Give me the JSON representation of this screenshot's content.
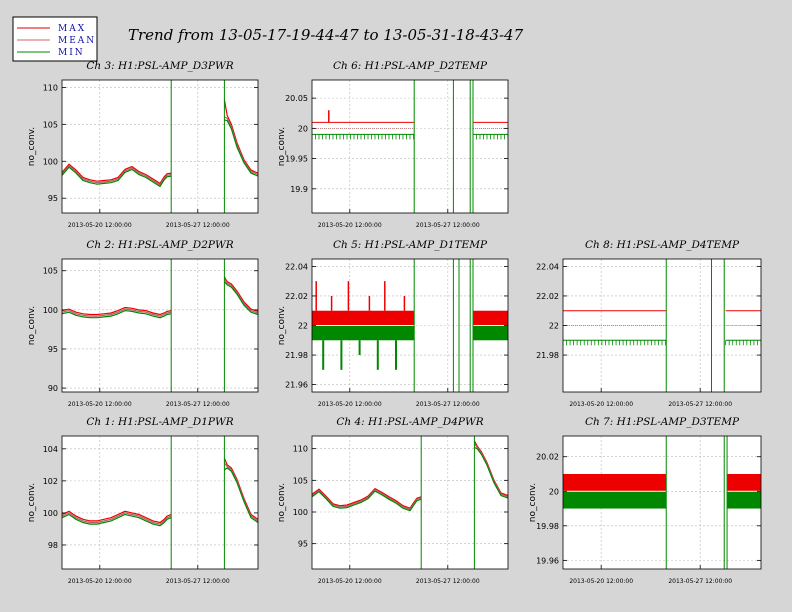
{
  "page_title": "Trend from 13-05-17-19-44-47 to 13-05-31-18-43-47",
  "legend": {
    "items": [
      {
        "label": "MAX",
        "color": "#dd0000"
      },
      {
        "label": "MEAN",
        "color": "#cc6666"
      },
      {
        "label": "MIN",
        "color": "#008800"
      }
    ]
  },
  "colors": {
    "max": "#ee0000",
    "mean": "#aa6666",
    "min": "#008800",
    "grid": "#bbbbbb",
    "background": "#d6d6d6",
    "plot": "#ffffff"
  },
  "chart_data": [
    {
      "type": "line",
      "title": "Ch 3: H1:PSL-AMP_D3PWR",
      "ylabel": "no_conv.",
      "xlabel": "",
      "xlim": [
        0,
        14
      ],
      "ylim": [
        93,
        111
      ],
      "yticks": [
        95,
        100,
        105,
        110
      ],
      "ytick_labels": [
        "95",
        "100",
        "105",
        "110"
      ],
      "xticks": [
        2.7,
        9.7
      ],
      "xtick_labels": [
        "2013-05-20 12:00:00",
        "2013-05-27 12:00:00"
      ],
      "grid": true,
      "x": [
        0,
        0.5,
        1,
        1.5,
        2,
        2.5,
        3,
        3.5,
        4,
        4.5,
        5,
        5.5,
        6,
        6.5,
        7,
        7.3,
        7.5,
        7.8
      ],
      "series": [
        {
          "name": "MAX",
          "values": [
            98.5,
            99.6,
            98.8,
            97.8,
            97.5,
            97.3,
            97.4,
            97.5,
            97.8,
            98.9,
            99.3,
            98.6,
            98.2,
            97.6,
            97.0,
            97.9,
            98.3,
            98.4
          ]
        },
        {
          "name": "MEAN",
          "values": [
            98.3,
            99.4,
            98.6,
            97.6,
            97.3,
            97.1,
            97.2,
            97.3,
            97.6,
            98.7,
            99.1,
            98.4,
            98.0,
            97.4,
            96.8,
            97.7,
            98.1,
            98.2
          ]
        },
        {
          "name": "MIN",
          "values": [
            98.1,
            99.2,
            98.4,
            97.4,
            97.1,
            96.9,
            97.0,
            97.1,
            97.4,
            98.5,
            98.9,
            98.2,
            97.8,
            97.2,
            96.6,
            97.5,
            97.9,
            98.0
          ]
        }
      ],
      "segment2": {
        "x": [
          11.6,
          11.8,
          12.1,
          12.5,
          13,
          13.5,
          14
        ],
        "series": [
          {
            "name": "MAX",
            "values": [
              108.3,
              106.2,
              105.0,
              102.5,
              100.2,
              98.8,
              98.4
            ]
          },
          {
            "name": "MEAN",
            "values": [
              106.0,
              105.8,
              104.7,
              102.2,
              100.0,
              98.6,
              98.2
            ]
          },
          {
            "name": "MIN",
            "values": [
              105.6,
              105.5,
              104.4,
              101.9,
              99.8,
              98.4,
              98.0
            ]
          }
        ]
      },
      "dropouts": [
        7.8,
        11.6
      ]
    },
    {
      "type": "line",
      "title": "Ch 6: H1:PSL-AMP_D2TEMP",
      "ylabel": "no_conv.",
      "xlabel": "",
      "xlim": [
        0,
        14
      ],
      "ylim": [
        19.86,
        20.08
      ],
      "yticks": [
        19.9,
        19.95,
        20,
        20.05
      ],
      "ytick_labels": [
        "19.9",
        "19.95",
        "20",
        "20.05"
      ],
      "xticks": [
        2.7,
        9.7
      ],
      "xtick_labels": [
        "2013-05-20 12:00:00",
        "2013-05-27 12:00:00"
      ],
      "grid": true,
      "bands": [
        {
          "x": [
            0,
            7.3
          ],
          "max": 20.01,
          "mean": 20.0,
          "min": 19.99
        },
        {
          "x": [
            11.5,
            14
          ],
          "max": 20.01,
          "mean": 20.0,
          "min": 19.99
        }
      ],
      "spikes": [
        {
          "x": 1.2,
          "top": 20.03
        },
        {
          "x": 3.9,
          "top": 20.01
        }
      ],
      "dropouts": [
        7.3,
        10.1,
        11.3,
        11.5
      ]
    },
    {
      "type": "line",
      "title": "Ch 2: H1:PSL-AMP_D2PWR",
      "ylabel": "no_conv.",
      "xlabel": "",
      "xlim": [
        0,
        14
      ],
      "ylim": [
        89.5,
        106.5
      ],
      "yticks": [
        90,
        95,
        100,
        105
      ],
      "ytick_labels": [
        "90",
        "95",
        "100",
        "105"
      ],
      "xticks": [
        2.7,
        9.7
      ],
      "xtick_labels": [
        "2013-05-20 12:00:00",
        "2013-05-27 12:00:00"
      ],
      "grid": true,
      "x": [
        0,
        0.5,
        1,
        1.5,
        2,
        2.5,
        3,
        3.5,
        4,
        4.5,
        5,
        5.5,
        6,
        6.5,
        7,
        7.3,
        7.5,
        7.8
      ],
      "series": [
        {
          "name": "MAX",
          "values": [
            99.9,
            100.1,
            99.7,
            99.5,
            99.4,
            99.4,
            99.5,
            99.6,
            99.9,
            100.3,
            100.2,
            100.0,
            99.9,
            99.6,
            99.4,
            99.6,
            99.8,
            99.9
          ]
        },
        {
          "name": "MEAN",
          "values": [
            99.7,
            99.9,
            99.5,
            99.3,
            99.2,
            99.2,
            99.3,
            99.4,
            99.7,
            100.1,
            100.0,
            99.8,
            99.7,
            99.4,
            99.2,
            99.4,
            99.6,
            99.7
          ]
        },
        {
          "name": "MIN",
          "values": [
            99.5,
            99.7,
            99.3,
            99.1,
            99.0,
            99.0,
            99.1,
            99.2,
            99.5,
            99.9,
            99.8,
            99.6,
            99.5,
            99.2,
            99.0,
            99.2,
            99.4,
            99.5
          ]
        }
      ],
      "segment2": {
        "x": [
          11.6,
          11.8,
          12.1,
          12.5,
          13,
          13.5,
          14
        ],
        "series": [
          {
            "name": "MAX",
            "values": [
              104.2,
              103.6,
              103.3,
              102.4,
              101.0,
              100.1,
              99.8
            ]
          },
          {
            "name": "MEAN",
            "values": [
              104.0,
              103.4,
              103.1,
              102.2,
              100.8,
              99.9,
              99.6
            ]
          },
          {
            "name": "MIN",
            "values": [
              103.6,
              103.2,
              102.9,
              102.0,
              100.6,
              99.7,
              99.4
            ]
          }
        ]
      },
      "dropouts": [
        7.8,
        11.6
      ]
    },
    {
      "type": "line",
      "title": "Ch 5: H1:PSL-AMP_D1TEMP",
      "ylabel": "no_conv.",
      "xlabel": "",
      "xlim": [
        0,
        14
      ],
      "ylim": [
        21.955,
        22.045
      ],
      "yticks": [
        21.96,
        21.98,
        22,
        22.02,
        22.04
      ],
      "ytick_labels": [
        "21.96",
        "21.98",
        "22",
        "22.02",
        "22.04"
      ],
      "xticks": [
        2.7,
        9.7
      ],
      "xtick_labels": [
        "2013-05-20 12:00:00",
        "2013-05-27 12:00:00"
      ],
      "grid": true,
      "bands": [
        {
          "x": [
            0,
            7.3
          ],
          "max": 22.01,
          "mean": 22.0,
          "min": 21.99
        },
        {
          "x": [
            11.5,
            14
          ],
          "max": 22.01,
          "mean": 22.0,
          "min": 21.99
        }
      ],
      "spikes": [
        {
          "x": 0.3,
          "top": 22.03
        },
        {
          "x": 1.4,
          "top": 22.02
        },
        {
          "x": 2.6,
          "top": 22.03
        },
        {
          "x": 4.1,
          "top": 22.02
        },
        {
          "x": 5.2,
          "top": 22.03
        },
        {
          "x": 6.6,
          "top": 22.02
        }
      ],
      "dips": [
        {
          "x": 0.8,
          "bottom": 21.97
        },
        {
          "x": 2.1,
          "bottom": 21.97
        },
        {
          "x": 3.4,
          "bottom": 21.98
        },
        {
          "x": 4.7,
          "bottom": 21.97
        },
        {
          "x": 6.0,
          "bottom": 21.97
        }
      ],
      "dropouts": [
        7.3,
        10.1,
        10.5,
        11.3,
        11.5
      ]
    },
    {
      "type": "line",
      "title": "Ch 8: H1:PSL-AMP_D4TEMP",
      "ylabel": "",
      "xlabel": "",
      "xlim": [
        0,
        14
      ],
      "ylim": [
        21.955,
        22.045
      ],
      "yticks": [
        21.98,
        22,
        22.02,
        22.04
      ],
      "ytick_labels": [
        "21.98",
        "22",
        "22.02",
        "22.04"
      ],
      "xticks": [
        2.7,
        9.7
      ],
      "xtick_labels": [
        "2013-05-20 12:00:00",
        "2013-05-27 12:00:00"
      ],
      "grid": true,
      "bands": [
        {
          "x": [
            0,
            7.3
          ],
          "max": 22.01,
          "mean": 22.0,
          "min": 21.99
        },
        {
          "x": [
            11.5,
            14
          ],
          "max": 22.01,
          "mean": 22.0,
          "min": 21.99
        }
      ],
      "spikes": [
        {
          "x": 3.6,
          "top": 22.01
        }
      ],
      "dropouts": [
        7.3,
        10.5,
        11.4
      ]
    },
    {
      "type": "line",
      "title": "Ch 1: H1:PSL-AMP_D1PWR",
      "ylabel": "no_conv.",
      "xlabel": "",
      "xlim": [
        0,
        14
      ],
      "ylim": [
        96.5,
        104.8
      ],
      "yticks": [
        98,
        100,
        102,
        104
      ],
      "ytick_labels": [
        "98",
        "100",
        "102",
        "104"
      ],
      "xticks": [
        2.7,
        9.7
      ],
      "xtick_labels": [
        "2013-05-20 12:00:00",
        "2013-05-27 12:00:00"
      ],
      "grid": true,
      "x": [
        0,
        0.5,
        1,
        1.5,
        2,
        2.5,
        3,
        3.5,
        4,
        4.5,
        5,
        5.5,
        6,
        6.5,
        7,
        7.3,
        7.5,
        7.8
      ],
      "series": [
        {
          "name": "MAX",
          "values": [
            99.9,
            100.1,
            99.8,
            99.6,
            99.5,
            99.5,
            99.6,
            99.7,
            99.9,
            100.1,
            100.0,
            99.9,
            99.7,
            99.5,
            99.4,
            99.6,
            99.8,
            99.9
          ]
        },
        {
          "name": "MEAN",
          "values": [
            99.8,
            100.0,
            99.7,
            99.5,
            99.4,
            99.4,
            99.5,
            99.6,
            99.8,
            100.0,
            99.9,
            99.8,
            99.6,
            99.4,
            99.3,
            99.5,
            99.7,
            99.8
          ]
        },
        {
          "name": "MIN",
          "values": [
            99.7,
            99.9,
            99.6,
            99.4,
            99.3,
            99.3,
            99.4,
            99.5,
            99.7,
            99.9,
            99.8,
            99.7,
            99.5,
            99.3,
            99.2,
            99.4,
            99.6,
            99.7
          ]
        }
      ],
      "segment2": {
        "x": [
          11.6,
          11.8,
          12.1,
          12.5,
          13,
          13.5,
          14
        ],
        "series": [
          {
            "name": "MAX",
            "values": [
              103.4,
              103.0,
              102.8,
              102.1,
              100.9,
              99.9,
              99.6
            ]
          },
          {
            "name": "MEAN",
            "values": [
              103.1,
              102.9,
              102.7,
              102.0,
              100.8,
              99.8,
              99.5
            ]
          },
          {
            "name": "MIN",
            "values": [
              102.7,
              102.8,
              102.6,
              101.9,
              100.7,
              99.7,
              99.4
            ]
          }
        ]
      },
      "dropouts": [
        7.8,
        11.6
      ]
    },
    {
      "type": "line",
      "title": "Ch 4: H1:PSL-AMP_D4PWR",
      "ylabel": "no_conv.",
      "xlabel": "",
      "xlim": [
        0,
        14
      ],
      "ylim": [
        91,
        112
      ],
      "yticks": [
        95,
        100,
        105,
        110
      ],
      "ytick_labels": [
        "95",
        "100",
        "105",
        "110"
      ],
      "xticks": [
        2.7,
        9.7
      ],
      "xtick_labels": [
        "2013-05-20 12:00:00",
        "2013-05-27 12:00:00"
      ],
      "grid": true,
      "x": [
        0,
        0.5,
        1,
        1.5,
        2,
        2.5,
        3,
        3.5,
        4,
        4.5,
        5,
        5.5,
        6,
        6.5,
        7,
        7.3,
        7.5,
        7.8
      ],
      "series": [
        {
          "name": "MAX",
          "values": [
            102.8,
            103.6,
            102.5,
            101.3,
            101.0,
            101.1,
            101.5,
            101.9,
            102.5,
            103.7,
            103.1,
            102.4,
            101.8,
            101.0,
            100.6,
            101.6,
            102.2,
            102.4
          ]
        },
        {
          "name": "MEAN",
          "values": [
            102.6,
            103.4,
            102.3,
            101.1,
            100.8,
            100.9,
            101.3,
            101.7,
            102.3,
            103.5,
            102.9,
            102.2,
            101.6,
            100.8,
            100.4,
            101.4,
            102.0,
            102.2
          ]
        },
        {
          "name": "MIN",
          "values": [
            102.4,
            103.2,
            102.1,
            100.9,
            100.6,
            100.7,
            101.1,
            101.5,
            102.1,
            103.3,
            102.7,
            102.0,
            101.4,
            100.6,
            100.2,
            101.2,
            101.8,
            102.0
          ]
        }
      ],
      "segment2": {
        "x": [
          11.6,
          11.8,
          12.1,
          12.5,
          13,
          13.5,
          14
        ],
        "series": [
          {
            "name": "MAX",
            "values": [
              111.2,
              110.4,
              109.5,
              107.8,
              105.0,
              103.0,
              102.6
            ]
          },
          {
            "name": "MEAN",
            "values": [
              110.8,
              110.2,
              109.3,
              107.6,
              104.8,
              102.8,
              102.4
            ]
          },
          {
            "name": "MIN",
            "values": [
              110.2,
              110.0,
              109.1,
              107.4,
              104.6,
              102.6,
              102.2
            ]
          }
        ]
      },
      "dropouts": [
        7.8,
        11.6
      ]
    },
    {
      "type": "line",
      "title": "Ch 7: H1:PSL-AMP_D3TEMP",
      "ylabel": "no_conv.",
      "xlabel": "",
      "xlim": [
        0,
        14
      ],
      "ylim": [
        19.955,
        20.032
      ],
      "yticks": [
        19.96,
        19.98,
        20,
        20.02
      ],
      "ytick_labels": [
        "19.96",
        "19.98",
        "20",
        "20.02"
      ],
      "xticks": [
        2.7,
        9.7
      ],
      "xtick_labels": [
        "2013-05-20 12:00:00",
        "2013-05-27 12:00:00"
      ],
      "grid": true,
      "bands": [
        {
          "x": [
            0,
            7.3
          ],
          "max": 20.01,
          "mean": 20.0,
          "min": 19.99
        },
        {
          "x": [
            11.6,
            14
          ],
          "max": 20.01,
          "mean": 20.0,
          "min": 19.99
        }
      ],
      "spikes": [],
      "dropouts": [
        7.3,
        11.4,
        11.6
      ]
    }
  ]
}
